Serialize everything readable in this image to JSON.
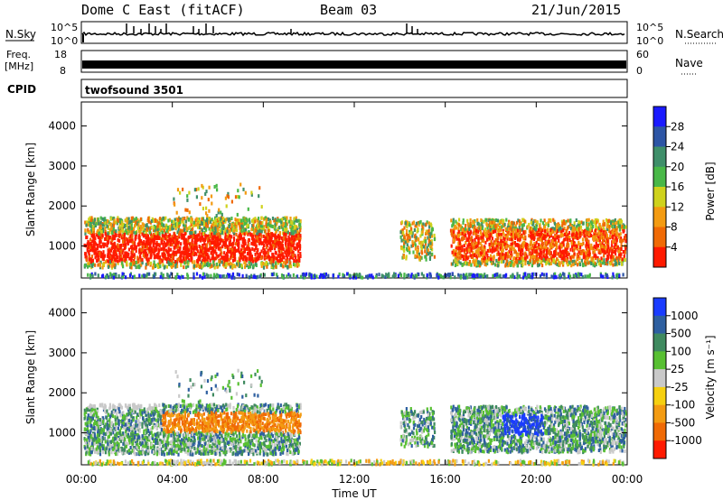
{
  "header": {
    "station": "Dome C East (fitACF)",
    "beam": "Beam 03",
    "date": "21/Jun/2015"
  },
  "strips": {
    "nsky_label": "N.Sky",
    "nsky_top": "10^5",
    "nsky_bottom": "10^0",
    "nsearch_label": "N.Search",
    "freq_label": "Freq.",
    "freq_unit": "[MHz]",
    "freq_top": "18",
    "freq_bottom": "8",
    "nave_label": "Nave",
    "nave_top": "60",
    "nave_bottom": "0",
    "cpid_label": "CPID",
    "cpid_value": "twofsound 3501"
  },
  "chart_data": [
    {
      "type": "heatmap",
      "name": "power",
      "ylabel": "Slant Range [km]",
      "ylim": [
        200,
        4600
      ],
      "y_ticks": [
        "1000",
        "2000",
        "3000",
        "4000"
      ],
      "x_ticks": [
        "00:00",
        "04:00",
        "08:00",
        "12:00",
        "16:00",
        "20:00",
        "00:00"
      ],
      "xlim_hours": [
        0,
        24
      ],
      "colorbar_label": "Power [dB]",
      "colorbar_ticks": [
        "4",
        "8",
        "12",
        "16",
        "20",
        "24",
        "28"
      ],
      "colorbar_colors": [
        "#1a1aff",
        "#2d55a5",
        "#3f8f6a",
        "#49b848",
        "#cfd21c",
        "#f39b12",
        "#f06a05",
        "#ff1a00"
      ]
    },
    {
      "type": "heatmap",
      "name": "velocity",
      "ylabel": "Slant Range [km]",
      "ylim": [
        200,
        4600
      ],
      "y_ticks": [
        "1000",
        "2000",
        "3000",
        "4000"
      ],
      "x_ticks": [
        "00:00",
        "04:00",
        "08:00",
        "12:00",
        "16:00",
        "20:00",
        "00:00"
      ],
      "xlim_hours": [
        0,
        24
      ],
      "xlabel": "Time UT",
      "colorbar_label": "Velocity [m s⁻¹]",
      "colorbar_ticks": [
        "1000",
        "500",
        "100",
        "25",
        "-25",
        "-100",
        "-500",
        "-1000"
      ],
      "colorbar_colors": [
        "#1a3cff",
        "#2e5fa0",
        "#3f8a5f",
        "#58c032",
        "#c9c9c9",
        "#f6d010",
        "#f39b12",
        "#f06a05",
        "#ff1a00"
      ]
    }
  ]
}
